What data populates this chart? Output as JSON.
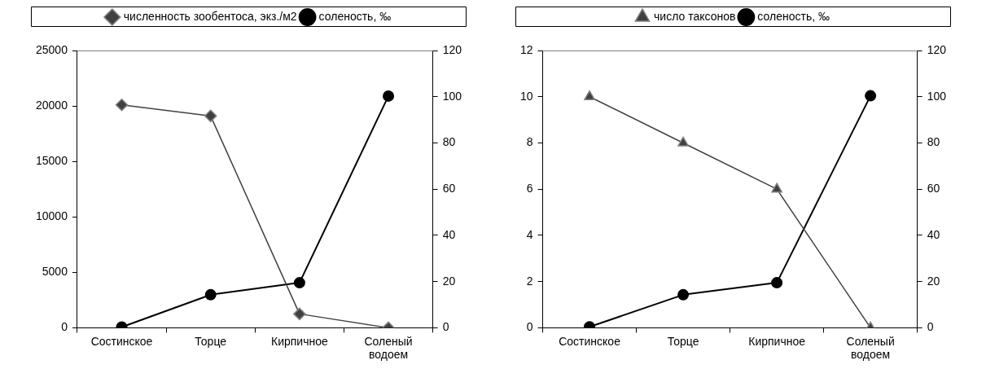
{
  "chart_data": [
    {
      "type": "line",
      "categories": [
        "Состинское",
        "Торце",
        "Кирпичное",
        "Соленый водоем"
      ],
      "series": [
        {
          "name": "численность зообентоса, экз./м2",
          "color": "#404040",
          "values": [
            20100,
            19100,
            1250,
            0
          ],
          "marker": "diamond"
        },
        {
          "name": "соленость, ‰",
          "color": "#000000",
          "values": [
            0.3,
            14.3,
            19.5,
            100.3
          ],
          "marker": "circle",
          "axis": "y2"
        }
      ],
      "ylim": [
        0,
        25000
      ],
      "yticks": [
        0,
        5000,
        10000,
        15000,
        20000,
        25000
      ],
      "y2lim": [
        0,
        120
      ],
      "y2ticks": [
        0,
        20,
        40,
        60,
        80,
        100,
        120
      ],
      "legend": "top",
      "grid": false
    },
    {
      "type": "line",
      "categories": [
        "Состинское",
        "Торце",
        "Кирпичное",
        "Соленый водоем"
      ],
      "series": [
        {
          "name": "число таксонов",
          "color": "#404040",
          "values": [
            10,
            8,
            6,
            0
          ],
          "marker": "triangle"
        },
        {
          "name": "соленость, ‰",
          "color": "#000000",
          "values": [
            0.4,
            14.3,
            19.5,
            100.4
          ],
          "marker": "circle",
          "axis": "y2"
        }
      ],
      "ylim": [
        0,
        12
      ],
      "yticks": [
        0,
        2,
        4,
        6,
        8,
        10,
        12
      ],
      "y2lim": [
        0,
        120
      ],
      "y2ticks": [
        0,
        20,
        40,
        60,
        80,
        100,
        120
      ],
      "legend": "top",
      "grid": false
    }
  ]
}
